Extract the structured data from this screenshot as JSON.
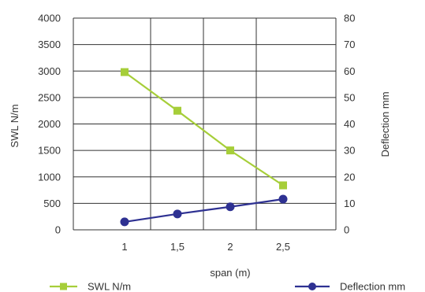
{
  "chart_data": {
    "type": "line",
    "categories": [
      "1",
      "1,5",
      "2",
      "2,5"
    ],
    "xlabel": "span (m)",
    "ylabel_left": "SWL N/m",
    "ylabel_right": "Deflection mm",
    "ylim_left": [
      0,
      4000
    ],
    "ylim_right": [
      0,
      80
    ],
    "yticks_left": [
      "0",
      "500",
      "1000",
      "1500",
      "2000",
      "2500",
      "3000",
      "3500",
      "4000"
    ],
    "yticks_right": [
      "0",
      "10",
      "20",
      "30",
      "40",
      "50",
      "60",
      "70",
      "80"
    ],
    "grid": true,
    "legend_position": "bottom",
    "series": [
      {
        "name": "SWL N/m",
        "axis": "left",
        "marker": "square",
        "color": "#a6ce39",
        "values": [
          2980,
          2250,
          1500,
          840
        ]
      },
      {
        "name": "Deflection mm",
        "axis": "right",
        "marker": "circle",
        "color": "#2e3192",
        "values": [
          3,
          6,
          8.7,
          11.6
        ]
      }
    ]
  }
}
